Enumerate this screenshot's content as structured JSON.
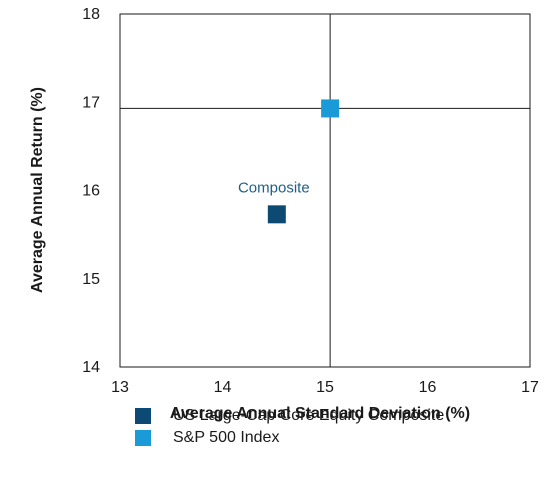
{
  "chart_data": {
    "type": "scatter",
    "xlabel": "Average Annual Standard Deviation (%)",
    "ylabel": "Average Annual Return (%)",
    "xlim": [
      13,
      17
    ],
    "ylim": [
      14,
      18
    ],
    "xticks": [
      "13",
      "14",
      "15",
      "16",
      "17"
    ],
    "yticks": [
      "14",
      "15",
      "16",
      "17",
      "18"
    ],
    "grid": false,
    "crosshair": {
      "x": 15.05,
      "y": 16.93
    },
    "series": [
      {
        "name": "US Large-Cap Core Equity Composite",
        "color": "#0d4a73",
        "x": 14.53,
        "y": 15.73,
        "label": "Composite"
      },
      {
        "name": "S&P 500 Index",
        "color": "#1a9bd7",
        "x": 15.05,
        "y": 16.93,
        "label": ""
      }
    ],
    "legend_position": "bottom"
  }
}
